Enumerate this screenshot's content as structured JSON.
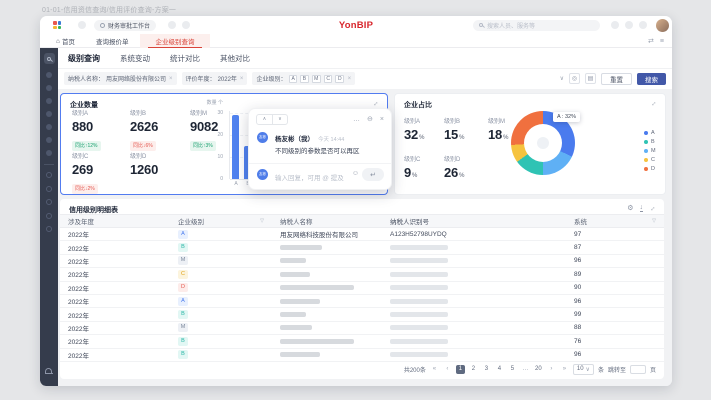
{
  "page": {
    "window_title": "01-01-信用资信查询/信用评价查询-方案一"
  },
  "chrome": {
    "workspace_tab": "财务审批工作台",
    "brand": "YonBIP",
    "search_placeholder": "搜索人员、服务等"
  },
  "nav": {
    "home": "首页",
    "tab_secondary": "查询报价单",
    "tab_active": "企业级别查询"
  },
  "query": {
    "tabs": [
      {
        "label": "级别查询",
        "active": true
      },
      {
        "label": "系统变动",
        "active": false
      },
      {
        "label": "统计对比",
        "active": false
      },
      {
        "label": "其他对比",
        "active": false
      }
    ],
    "filters": [
      {
        "label": "纳税人名称",
        "value": "用友网络股份有限公司"
      },
      {
        "label": "评价年度",
        "value": "2022年"
      },
      {
        "label": "企业级别",
        "value": "",
        "tags": [
          "A",
          "B",
          "M",
          "C",
          "D"
        ]
      }
    ],
    "reset_label": "重置",
    "search_label": "搜索"
  },
  "cards": {
    "quantity": {
      "title": "企业数量",
      "metrics": [
        {
          "label": "级别A",
          "value": "880",
          "delta": "同比↑12%",
          "trend": "up"
        },
        {
          "label": "级别B",
          "value": "2626",
          "delta": "同比↓6%",
          "trend": "down"
        },
        {
          "label": "级别M",
          "value": "9082",
          "delta": "同比↑3%",
          "trend": "up"
        },
        {
          "label": "级别C",
          "value": "269",
          "delta": "同比↓2%",
          "trend": "down"
        },
        {
          "label": "级别D",
          "value": "1260",
          "delta": "",
          "trend": ""
        }
      ],
      "chart": {
        "ylabel": "数量 个",
        "yticks": [
          "30",
          "20",
          "10",
          "0"
        ],
        "categories": [
          "A",
          "B"
        ],
        "values": [
          29,
          15
        ],
        "ymax": 30
      }
    },
    "ratio": {
      "title": "企业占比",
      "metrics": [
        {
          "label": "级别A",
          "value": "32",
          "unit": "%"
        },
        {
          "label": "级别B",
          "value": "15",
          "unit": "%"
        },
        {
          "label": "级别M",
          "value": "18",
          "unit": "%"
        },
        {
          "label": "级别C",
          "value": "9",
          "unit": "%"
        },
        {
          "label": "级别D",
          "value": "26",
          "unit": "%"
        }
      ],
      "tooltip": "A : 32%",
      "segments": [
        {
          "label": "A",
          "pct": 32,
          "color": "#4a7bee"
        },
        {
          "label": "M",
          "pct": 18,
          "color": "#5fb0f5"
        },
        {
          "label": "B",
          "pct": 15,
          "color": "#2fc3b4"
        },
        {
          "label": "C",
          "pct": 9,
          "color": "#f6c33f"
        },
        {
          "label": "D",
          "pct": 26,
          "color": "#f0703f"
        }
      ],
      "legend": [
        {
          "label": "A",
          "color": "#4a7bee"
        },
        {
          "label": "B",
          "color": "#2fc3b4"
        },
        {
          "label": "M",
          "color": "#5fb0f5"
        },
        {
          "label": "C",
          "color": "#f6c33f"
        },
        {
          "label": "D",
          "color": "#f0703f"
        }
      ]
    }
  },
  "chart_data": [
    {
      "type": "bar",
      "title": "企业数量",
      "ylabel": "数量 个",
      "ylim": [
        0,
        30
      ],
      "categories": [
        "A",
        "B"
      ],
      "values": [
        29,
        15
      ]
    },
    {
      "type": "pie",
      "title": "企业占比",
      "labels": [
        "A",
        "B",
        "M",
        "C",
        "D"
      ],
      "values": [
        32,
        15,
        18,
        9,
        26
      ],
      "annotations": [
        "A : 32%"
      ],
      "legend_position": "right"
    }
  ],
  "chat": {
    "avatar_text": "友彬",
    "sender": "杨友彬（我）",
    "time": "今天 14:44",
    "message": "不同级别的参数是否可以再区",
    "input_placeholder": "输入回复，可用 @ 提及"
  },
  "table": {
    "title": "信用级别明细表",
    "columns": [
      "涉及年度",
      "企业级别",
      "纳税人名称",
      "纳税人识别号",
      "系统"
    ],
    "rows": [
      {
        "year": "2022年",
        "level": "A",
        "name": "用友网络科技股份有限公司",
        "tax_id": "A123H52798UYDQ",
        "score": "97",
        "redacted": false
      },
      {
        "year": "2022年",
        "level": "B",
        "score": "87",
        "redacted": true,
        "name_w": 42,
        "id_w": 58
      },
      {
        "year": "2022年",
        "level": "M",
        "score": "96",
        "redacted": true,
        "name_w": 26,
        "id_w": 58
      },
      {
        "year": "2022年",
        "level": "C",
        "score": "89",
        "redacted": true,
        "name_w": 30,
        "id_w": 58
      },
      {
        "year": "2022年",
        "level": "D",
        "score": "90",
        "redacted": true,
        "name_w": 74,
        "id_w": 58
      },
      {
        "year": "2022年",
        "level": "A",
        "score": "96",
        "redacted": true,
        "name_w": 40,
        "id_w": 58
      },
      {
        "year": "2022年",
        "level": "B",
        "score": "99",
        "redacted": true,
        "name_w": 26,
        "id_w": 58
      },
      {
        "year": "2022年",
        "level": "M",
        "score": "88",
        "redacted": true,
        "name_w": 32,
        "id_w": 58
      },
      {
        "year": "2022年",
        "level": "B",
        "score": "76",
        "redacted": true,
        "name_w": 74,
        "id_w": 58
      },
      {
        "year": "2022年",
        "level": "B",
        "score": "96",
        "redacted": true,
        "name_w": 40,
        "id_w": 58
      }
    ]
  },
  "pagination": {
    "total": "共200条",
    "arrows": [
      "«",
      "‹",
      "›",
      "»"
    ],
    "pages": [
      "1",
      "2",
      "3",
      "4",
      "5",
      "…",
      "20"
    ],
    "active": "1",
    "size": "10",
    "size_unit": "条",
    "jump": "跳转至",
    "page_unit": "页"
  },
  "sidebar": {
    "filled_items": 7,
    "outline_items": 5
  },
  "colors": {
    "accent_red": "#d9443a",
    "primary_blue": "#4a7bee",
    "button_navy": "#4258a8",
    "up_green": "#18a06e",
    "down_red": "#e4574f"
  }
}
